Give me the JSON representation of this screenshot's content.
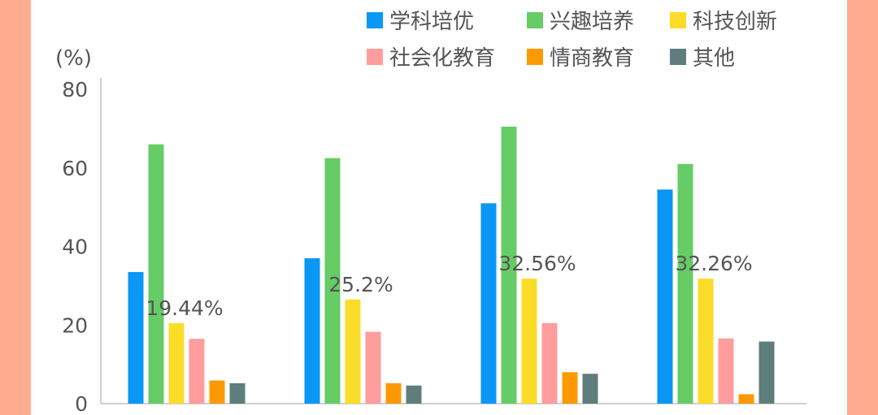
{
  "colors": {
    "page_border": "#ffab8f",
    "panel": "#ffffff",
    "axis": "#bfbfbf",
    "text": "#555555"
  },
  "chart_data": {
    "type": "bar",
    "title": "",
    "xlabel": "",
    "ylabel": "(%)",
    "ylim": [
      0,
      80
    ],
    "yticks": [
      0,
      20,
      40,
      60,
      80
    ],
    "grid": false,
    "legend_position": "top-right",
    "categories": [
      "",
      "",
      "",
      ""
    ],
    "series": [
      {
        "name": "学科培优",
        "color": "#0a97f5",
        "values": [
          33.5,
          37,
          51,
          54.5
        ]
      },
      {
        "name": "兴趣培养",
        "color": "#66cc66",
        "values": [
          66,
          62.5,
          70.5,
          61
        ]
      },
      {
        "name": "科技创新",
        "color": "#fbdc28",
        "values": [
          20.5,
          26.5,
          31.8,
          31.8
        ]
      },
      {
        "name": "社会化教育",
        "color": "#ff9d9d",
        "values": [
          16.5,
          18.3,
          20.5,
          16.6
        ]
      },
      {
        "name": "情商教育",
        "color": "#ff9903",
        "values": [
          5.9,
          5.2,
          8,
          2.4
        ]
      },
      {
        "name": "其他",
        "color": "#5f7d7c",
        "values": [
          5.2,
          4.6,
          7.6,
          15.8
        ]
      }
    ],
    "annotations": [
      "19.44%",
      "25.2%",
      "32.56%",
      "32.26%"
    ]
  }
}
